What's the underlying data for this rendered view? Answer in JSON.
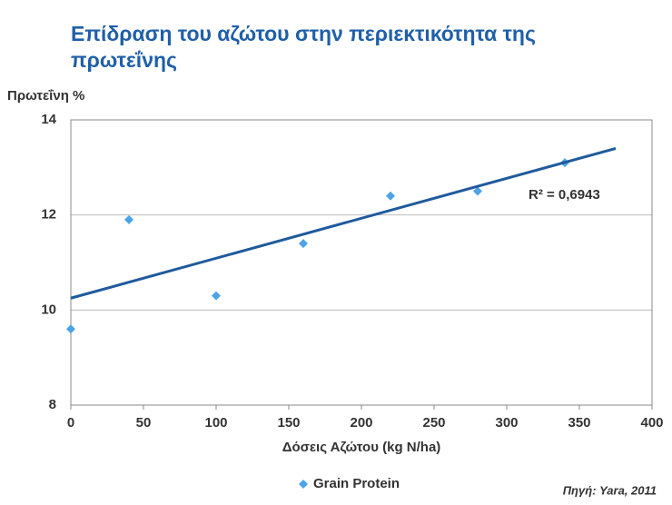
{
  "chart_data": {
    "type": "scatter",
    "title": [
      "Επίδραση του αζώτου στην περιεκτικότητα της",
      "πρωτεΐνης"
    ],
    "y_label": "Πρωτεΐνη %",
    "x_label": "Δόσεις  Αζώτου (kg N/ha)",
    "source": "Πηγή: Yara, 2011",
    "annotation": "R² = 0,6943",
    "series": [
      {
        "name": "Grain Protein",
        "color": "#4da3e6",
        "x": [
          0,
          40,
          100,
          160,
          220,
          280,
          340
        ],
        "values": [
          9.6,
          11.9,
          10.3,
          11.4,
          12.4,
          12.5,
          13.1
        ]
      }
    ],
    "trendline": {
      "color": "#1f5a9c",
      "x": [
        0,
        375
      ],
      "values": [
        10.25,
        13.4
      ]
    },
    "xlim": [
      0,
      400
    ],
    "xticks": [
      0,
      50,
      100,
      150,
      200,
      250,
      300,
      350,
      400
    ],
    "ylim": [
      8,
      14
    ],
    "yticks": [
      8,
      10,
      12,
      14
    ],
    "grid": true,
    "legend": "bottom"
  }
}
